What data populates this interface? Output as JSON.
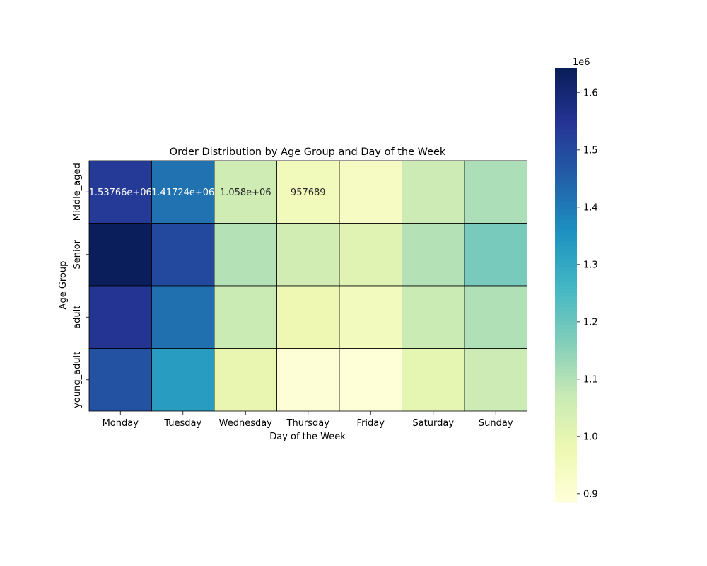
{
  "chart_data": {
    "type": "heatmap",
    "title": "Order Distribution by Age Group and Day of the Week",
    "xlabel": "Day of the Week",
    "ylabel": "Age Group",
    "x_categories": [
      "Monday",
      "Tuesday",
      "Wednesday",
      "Thursday",
      "Friday",
      "Saturday",
      "Sunday"
    ],
    "y_categories": [
      "Middle_aged",
      "Senior",
      "adult",
      "young_adult"
    ],
    "values": [
      [
        1537660,
        1417240,
        1058000,
        957689,
        935000,
        1060000,
        1110000
      ],
      [
        1640000,
        1500000,
        1100000,
        1050000,
        1010000,
        1100000,
        1180000
      ],
      [
        1550000,
        1420000,
        1065000,
        975000,
        950000,
        1065000,
        1105000
      ],
      [
        1480000,
        1330000,
        990000,
        895000,
        890000,
        1000000,
        1060000
      ]
    ],
    "annotations": [
      [
        "1.53766e+06",
        "1.41724e+06",
        "1.058e+06",
        "957689",
        "",
        "",
        ""
      ],
      [
        "",
        "",
        "",
        "",
        "",
        "",
        ""
      ],
      [
        "",
        "",
        "",
        "",
        "",
        "",
        ""
      ],
      [
        "",
        "",
        "",
        "",
        "",
        "",
        ""
      ]
    ],
    "colorbar": {
      "colormap": "YlGnBu",
      "vmin": 0.885,
      "vmax": 1.643,
      "ticks": [
        "0.9",
        "1.0",
        "1.1",
        "1.2",
        "1.3",
        "1.4",
        "1.5",
        "1.6"
      ],
      "multiplier_label": "1e6"
    }
  }
}
